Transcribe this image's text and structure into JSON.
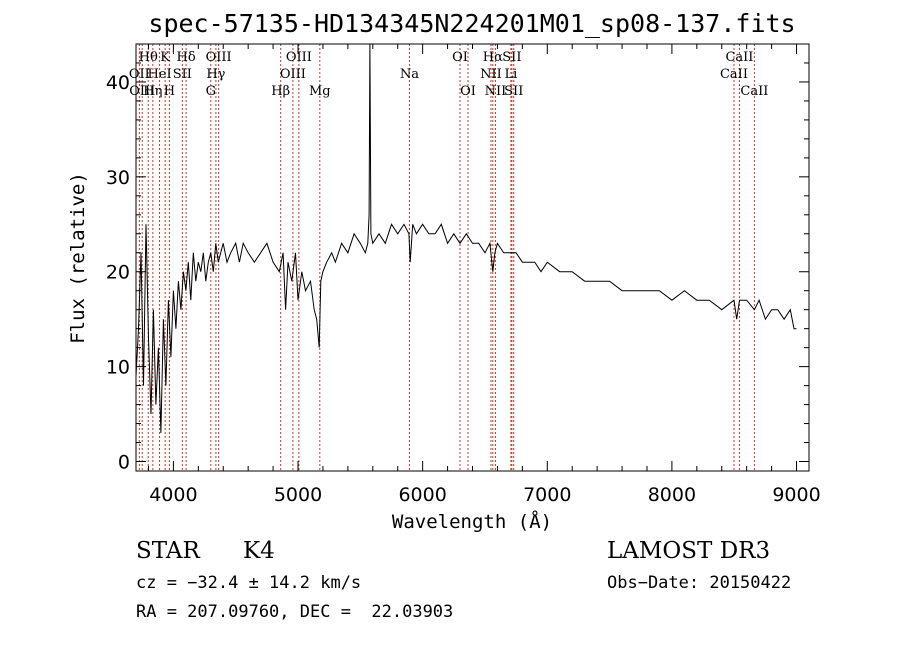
{
  "chart_data": {
    "type": "line",
    "title": "spec-57135-HD134345N224201M01_sp08-137.fits",
    "xlabel": "Wavelength (Å)",
    "ylabel": "Flux (relative)",
    "xlim": [
      3700,
      9100
    ],
    "ylim": [
      -1,
      44
    ],
    "xticks": [
      4000,
      5000,
      6000,
      7000,
      8000,
      9000
    ],
    "yticks": [
      0,
      10,
      20,
      30,
      40
    ],
    "series": [
      {
        "name": "spectrum",
        "x": [
          3700,
          3720,
          3740,
          3760,
          3780,
          3800,
          3820,
          3840,
          3860,
          3880,
          3900,
          3920,
          3940,
          3960,
          3980,
          4000,
          4020,
          4040,
          4060,
          4080,
          4100,
          4120,
          4140,
          4160,
          4180,
          4200,
          4220,
          4240,
          4260,
          4280,
          4300,
          4320,
          4340,
          4360,
          4380,
          4400,
          4430,
          4460,
          4500,
          4530,
          4560,
          4600,
          4650,
          4700,
          4750,
          4800,
          4850,
          4880,
          4900,
          4920,
          4950,
          4980,
          5000,
          5030,
          5060,
          5100,
          5130,
          5150,
          5170,
          5183,
          5200,
          5230,
          5270,
          5300,
          5350,
          5400,
          5450,
          5500,
          5540,
          5560,
          5570,
          5577,
          5585,
          5600,
          5650,
          5700,
          5750,
          5800,
          5850,
          5890,
          5900,
          5920,
          5950,
          6000,
          6050,
          6100,
          6150,
          6200,
          6250,
          6300,
          6350,
          6400,
          6450,
          6500,
          6540,
          6563,
          6580,
          6600,
          6650,
          6700,
          6750,
          6800,
          6850,
          6900,
          6950,
          7000,
          7100,
          7200,
          7300,
          7400,
          7500,
          7600,
          7700,
          7800,
          7900,
          8000,
          8100,
          8200,
          8300,
          8400,
          8498,
          8520,
          8542,
          8600,
          8662,
          8700,
          8750,
          8800,
          8850,
          8900,
          8950,
          8980,
          9000
        ],
        "values": [
          9,
          14,
          22,
          8,
          25,
          13,
          5,
          16,
          6,
          12,
          3,
          15,
          8,
          17,
          11,
          18,
          14,
          19,
          16,
          20,
          18,
          21,
          17,
          22,
          19,
          21,
          20,
          22,
          19,
          21,
          22,
          20,
          23,
          21,
          22,
          23,
          21,
          22,
          23,
          21,
          23,
          22,
          21,
          22,
          23,
          21,
          20,
          22,
          16,
          21,
          19,
          22,
          17,
          20,
          18,
          19,
          16,
          15,
          12,
          19,
          20,
          21,
          22,
          21,
          23,
          22,
          24,
          23,
          22,
          23,
          26,
          44,
          24,
          23,
          24,
          23,
          25,
          24,
          25,
          24,
          21,
          25,
          24,
          25,
          24,
          24,
          25,
          23,
          24,
          23,
          24,
          23,
          23,
          22,
          23,
          20,
          22,
          23,
          22,
          22,
          22,
          21,
          21,
          21,
          20,
          21,
          20,
          20,
          19,
          19,
          19,
          18,
          18,
          18,
          18,
          17,
          18,
          17,
          17,
          16,
          17,
          15,
          17,
          17,
          16,
          17,
          15,
          16,
          16,
          15,
          16,
          14,
          14
        ]
      }
    ],
    "line_labels": [
      {
        "label": "Hθ",
        "wavelength": 3798,
        "row": 1
      },
      {
        "label": "OII",
        "wavelength": 3727,
        "row": 2
      },
      {
        "label": "OIII",
        "wavelength": 3750,
        "row": 3
      },
      {
        "label": "Hη",
        "wavelength": 3835,
        "row": 3
      },
      {
        "label": "K",
        "wavelength": 3934,
        "row": 1
      },
      {
        "label": "HeI",
        "wavelength": 3889,
        "row": 2
      },
      {
        "label": "SII",
        "wavelength": 4072,
        "row": 2
      },
      {
        "label": "H",
        "wavelength": 3968,
        "row": 3
      },
      {
        "label": "Hδ",
        "wavelength": 4102,
        "row": 1
      },
      {
        "label": "OIII",
        "wavelength": 4363,
        "row": 1
      },
      {
        "label": "Hγ",
        "wavelength": 4341,
        "row": 2
      },
      {
        "label": "G",
        "wavelength": 4300,
        "row": 3
      },
      {
        "label": "OIII",
        "wavelength": 5007,
        "row": 1
      },
      {
        "label": "OIII",
        "wavelength": 4959,
        "row": 2
      },
      {
        "label": "Hβ",
        "wavelength": 4861,
        "row": 3
      },
      {
        "label": "Mg",
        "wavelength": 5175,
        "row": 3
      },
      {
        "label": "Na",
        "wavelength": 5894,
        "row": 2
      },
      {
        "label": "OI",
        "wavelength": 6300,
        "row": 1
      },
      {
        "label": "OI",
        "wavelength": 6364,
        "row": 3
      },
      {
        "label": "Hα",
        "wavelength": 6563,
        "row": 1
      },
      {
        "label": "SII",
        "wavelength": 6716,
        "row": 1
      },
      {
        "label": "NII",
        "wavelength": 6548,
        "row": 2
      },
      {
        "label": "Li",
        "wavelength": 6708,
        "row": 2
      },
      {
        "label": "NII",
        "wavelength": 6584,
        "row": 3
      },
      {
        "label": "SII",
        "wavelength": 6731,
        "row": 3
      },
      {
        "label": "CaII",
        "wavelength": 8542,
        "row": 1
      },
      {
        "label": "CaII",
        "wavelength": 8498,
        "row": 2
      },
      {
        "label": "CaII",
        "wavelength": 8662,
        "row": 3
      }
    ]
  },
  "info": {
    "class": "STAR",
    "subclass": "K4",
    "survey": "LAMOST DR3",
    "cz": "cz = −32.4 ± 14.2 km/s",
    "obs_date": "Obs−Date: 20150422",
    "coords": "RA = 207.09760, DEC =  22.03903"
  }
}
